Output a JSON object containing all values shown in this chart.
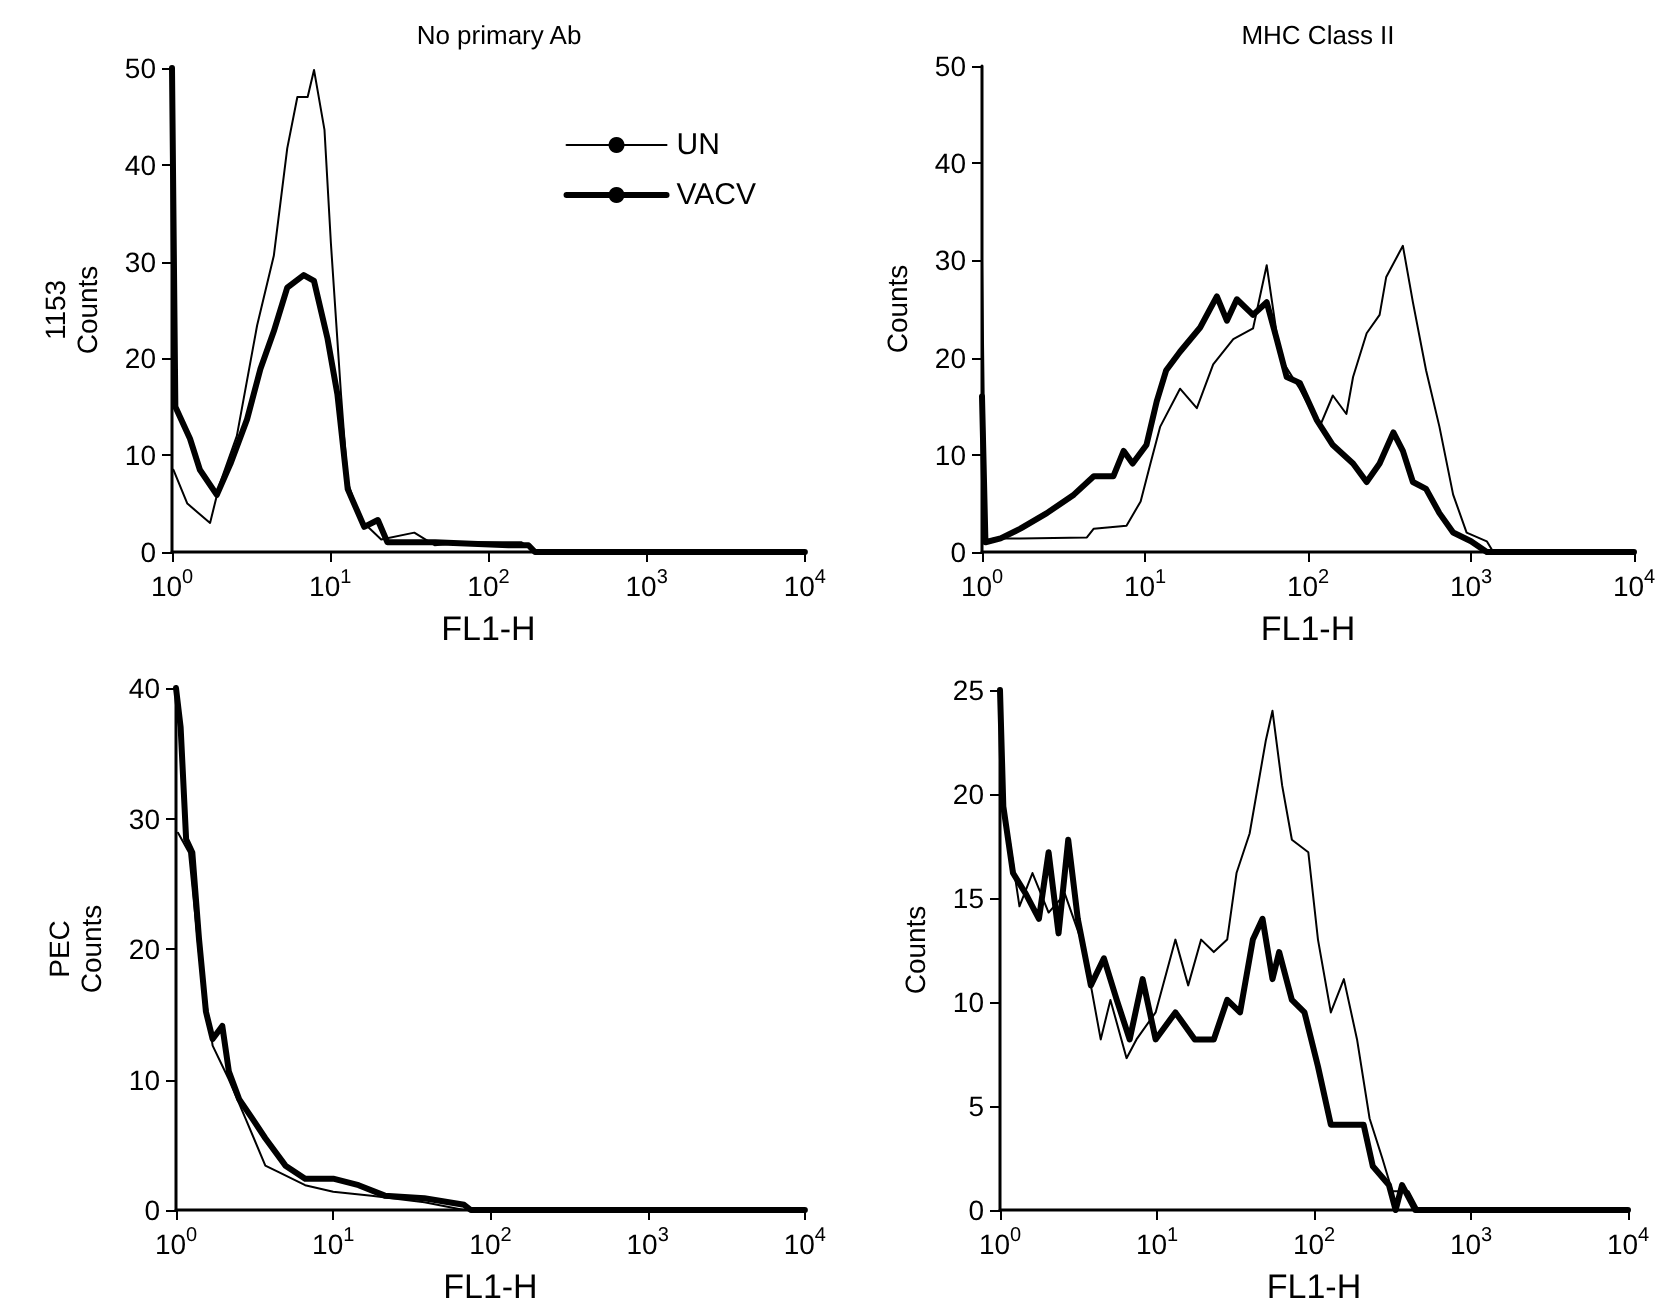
{
  "chart_data": [
    {
      "type": "line",
      "title": "No primary Ab",
      "xlabel": "FL1-H",
      "ylabel": "1153\nCounts",
      "log": "x",
      "marker": "none",
      "line_style": "solid",
      "legend": "top right",
      "xlim": [
        1,
        10000
      ],
      "xticks": [
        {
          "value": 1,
          "label": "10$^{0}$"
        },
        {
          "value": 10,
          "label": "10$^{1}$"
        },
        {
          "value": 100,
          "label": "10$^{2}$"
        },
        {
          "value": 1000,
          "label": "10$^{3}$"
        },
        {
          "value": 10000,
          "label": "10$^{4}$"
        }
      ],
      "ylim": [
        0,
        50
      ],
      "yticks": [
        0,
        10,
        20,
        30,
        40,
        50
      ],
      "series": [
        {
          "name": "UN",
          "color": "#000000",
          "x": [
            1.02,
            1.25,
            1.74,
            2.0,
            2.57,
            3.45,
            4.4,
            5.35,
            6.2,
            7.2,
            7.9,
            9.2,
            10.1,
            11.7,
            12.9,
            15.6,
            21,
            34,
            45.7,
            74,
            162,
            197,
            10000
          ],
          "values": [
            8.5,
            5,
            3,
            7,
            12,
            23.4,
            30.6,
            41.7,
            47,
            47,
            49.8,
            43.6,
            31.9,
            16.3,
            7.2,
            3.3,
            1.3,
            2,
            0.7,
            1,
            1,
            0,
            0
          ]
        },
        {
          "name": "VACV",
          "color": "#000000",
          "x": [
            1,
            1.05,
            1.3,
            1.5,
            1.92,
            2.34,
            2.98,
            3.62,
            4.4,
            5.35,
            6.8,
            7.9,
            9.6,
            11.1,
            12.9,
            16.4,
            20,
            23,
            46,
            134,
            179,
            197,
            10000
          ],
          "values": [
            50,
            15,
            11.7,
            8.5,
            5.9,
            9.1,
            13.7,
            18.9,
            22.8,
            27.3,
            28.6,
            28,
            22.1,
            16.3,
            6.5,
            2.6,
            3.3,
            1,
            1,
            0.7,
            0.7,
            0,
            0
          ]
        }
      ]
    },
    {
      "type": "line",
      "title": "MHC Class II",
      "xlabel": "FL1-H",
      "ylabel": "Counts",
      "log": "x",
      "marker": "none",
      "line_style": "solid",
      "xlim": [
        1,
        10000
      ],
      "xticks": [
        {
          "value": 1,
          "label": "10$^{0}$"
        },
        {
          "value": 10,
          "label": "10$^{1}$"
        },
        {
          "value": 100,
          "label": "10$^{2}$"
        },
        {
          "value": 1000,
          "label": "10$^{3}$"
        },
        {
          "value": 10000,
          "label": "10$^{4}$"
        }
      ],
      "ylim": [
        0,
        50
      ],
      "yticks": [
        0,
        10,
        20,
        30,
        40,
        50
      ],
      "series": [
        {
          "color": "#000000",
          "x": [
            1,
            1.05,
            1.18,
            1.72,
            4.4,
            4.85,
            7.7,
            9.4,
            10.8,
            12.4,
            16.4,
            20.8,
            26.2,
            34.8,
            46,
            55.8,
            67.5,
            89,
            118,
            142,
            172,
            189,
            229,
            275,
            302,
            382,
            440,
            530,
            640,
            777,
            940,
            1250,
            1370,
            10000
          ],
          "values": [
            30,
            1,
            1.4,
            1.4,
            1.5,
            2.4,
            2.7,
            5.2,
            9.1,
            12.9,
            16.8,
            14.8,
            19.3,
            21.9,
            23,
            29.5,
            20,
            16.8,
            12.9,
            16.1,
            14.2,
            18,
            22.5,
            24.4,
            28.3,
            31.5,
            25.7,
            18.7,
            12.9,
            5.9,
            2,
            1.1,
            0,
            0
          ]
        },
        {
          "color": "#000000",
          "x": [
            1,
            1.05,
            1.3,
            1.72,
            2.5,
            3.66,
            4.85,
            6.4,
            7.4,
            8.4,
            10.2,
            11.8,
            13.5,
            16.4,
            21.8,
            27.6,
            31.8,
            36.6,
            46,
            55.8,
            64.3,
            74,
            89,
            113,
            142,
            189,
            229,
            275,
            334,
            382,
            440,
            530,
            640,
            777,
            1000,
            1250,
            10000
          ],
          "values": [
            16,
            1,
            1.4,
            2.4,
            4,
            5.9,
            7.8,
            7.8,
            10.4,
            9.1,
            11,
            15.5,
            18.7,
            20.6,
            23.1,
            26.3,
            23.8,
            26,
            24.4,
            25.7,
            21.9,
            18,
            17.4,
            13.6,
            11,
            9.1,
            7.2,
            9.1,
            12.3,
            10.4,
            7.2,
            6.5,
            4,
            2,
            1.1,
            0,
            0
          ]
        }
      ]
    },
    {
      "type": "line",
      "xlabel": "FL1-H",
      "ylabel": "PEC\nCounts",
      "log": "x",
      "marker": "none",
      "line_style": "solid",
      "xlim": [
        1,
        10000
      ],
      "xticks": [
        {
          "value": 1,
          "label": "10$^{0}$"
        },
        {
          "value": 10,
          "label": "10$^{1}$"
        },
        {
          "value": 100,
          "label": "10$^{2}$"
        },
        {
          "value": 1000,
          "label": "10$^{3}$"
        },
        {
          "value": 10000,
          "label": "10$^{4}$"
        }
      ],
      "ylim": [
        0,
        40
      ],
      "yticks": [
        0,
        10,
        20,
        30,
        40
      ],
      "series": [
        {
          "color": "#000000",
          "x": [
            1.03,
            1.21,
            1.4,
            1.71,
            2.17,
            2.77,
            3.7,
            4.5,
            6.63,
            10,
            17.5,
            38,
            68,
            10000
          ],
          "values": [
            28.9,
            27.4,
            19.7,
            12.6,
            10,
            7,
            3.4,
            2.9,
            1.9,
            1.4,
            1.1,
            0.6,
            0,
            0
          ]
        },
        {
          "color": "#000000",
          "x": [
            1,
            1.07,
            1.16,
            1.27,
            1.4,
            1.55,
            1.71,
            1.97,
            2.17,
            2.52,
            3.06,
            3.7,
            4.97,
            6.63,
            10,
            14.5,
            21.3,
            38,
            68,
            75,
            10000
          ],
          "values": [
            40,
            37,
            28.4,
            27.4,
            20.8,
            15.2,
            13.1,
            14.1,
            10.6,
            8.5,
            7,
            5.5,
            3.4,
            2.4,
            2.4,
            1.9,
            1.1,
            0.9,
            0.4,
            0,
            0
          ]
        }
      ]
    },
    {
      "type": "line",
      "xlabel": "FL1-H",
      "ylabel": "Counts",
      "log": "x",
      "marker": "none",
      "line_style": "solid",
      "xlim": [
        1,
        10000
      ],
      "xticks": [
        {
          "value": 1,
          "label": "10$^{0}$"
        },
        {
          "value": 10,
          "label": "10$^{1}$"
        },
        {
          "value": 100,
          "label": "10$^{2}$"
        },
        {
          "value": 1000,
          "label": "10$^{3}$"
        },
        {
          "value": 10000,
          "label": "10$^{4}$"
        }
      ],
      "ylim": [
        0,
        25
      ],
      "yticks": [
        0,
        5,
        10,
        15,
        20,
        25
      ],
      "series": [
        {
          "color": "#000000",
          "x": [
            1.02,
            1.15,
            1.33,
            1.61,
            2.04,
            2.59,
            3.28,
            3.79,
            4.38,
            5.05,
            6.4,
            7.4,
            9.8,
            13.1,
            15.8,
            19.1,
            23,
            28,
            32.1,
            38.9,
            49.4,
            54.4,
            62.7,
            72.3,
            92,
            106,
            128,
            155,
            188,
            226,
            272,
            315,
            400,
            463,
            10000
          ],
          "values": [
            19.7,
            17.8,
            14.6,
            16.2,
            14.3,
            15.2,
            13,
            10.8,
            8.2,
            10.1,
            7.3,
            8.2,
            9.5,
            13,
            10.8,
            13,
            12.4,
            13,
            16.2,
            18.1,
            22.6,
            24,
            20.4,
            17.8,
            17.2,
            13,
            9.5,
            11.1,
            8.2,
            4.4,
            2.5,
            0.9,
            0.9,
            0,
            0
          ]
        },
        {
          "color": "#000000",
          "x": [
            1,
            1.05,
            1.21,
            1.46,
            1.77,
            2.04,
            2.36,
            2.72,
            3.13,
            3.79,
            4.59,
            5.54,
            6.7,
            8.1,
            9.8,
            13.1,
            17.4,
            23,
            28,
            33.8,
            40.8,
            47,
            54.4,
            60,
            72.3,
            87,
            106,
            128,
            155,
            207,
            237,
            300,
            331,
            364,
            442,
            10000
          ],
          "values": [
            25,
            19.4,
            16.2,
            15.2,
            14,
            17.2,
            13.3,
            17.8,
            14,
            10.8,
            12.1,
            10.1,
            8.2,
            11.1,
            8.2,
            9.5,
            8.2,
            8.2,
            10.1,
            9.5,
            13,
            14,
            11.1,
            12.4,
            10.1,
            9.5,
            6.9,
            4.1,
            4.1,
            4.1,
            2.1,
            1.2,
            0,
            1.2,
            0,
            0
          ]
        }
      ]
    }
  ]
}
